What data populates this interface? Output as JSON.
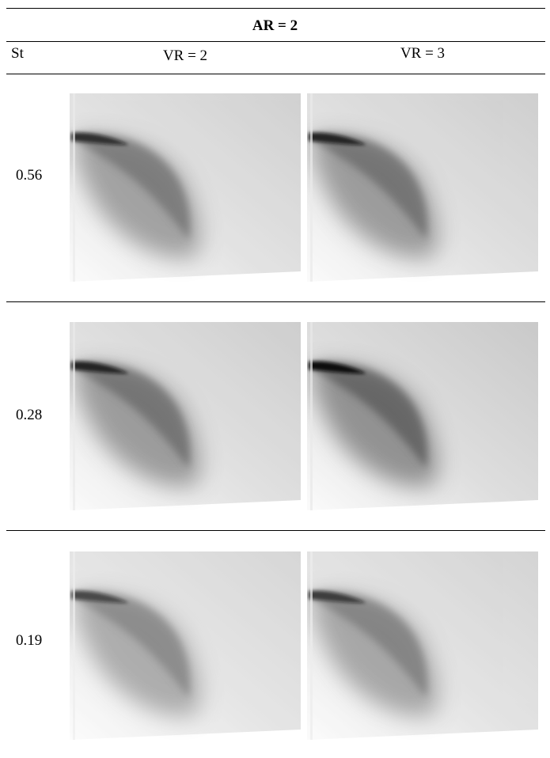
{
  "table": {
    "title": "AR = 2",
    "columns": [
      "St",
      "VR = 2",
      "VR = 3"
    ],
    "rows": [
      [
        "0.56"
      ],
      [
        "0.28"
      ],
      [
        "0.19"
      ]
    ]
  }
}
